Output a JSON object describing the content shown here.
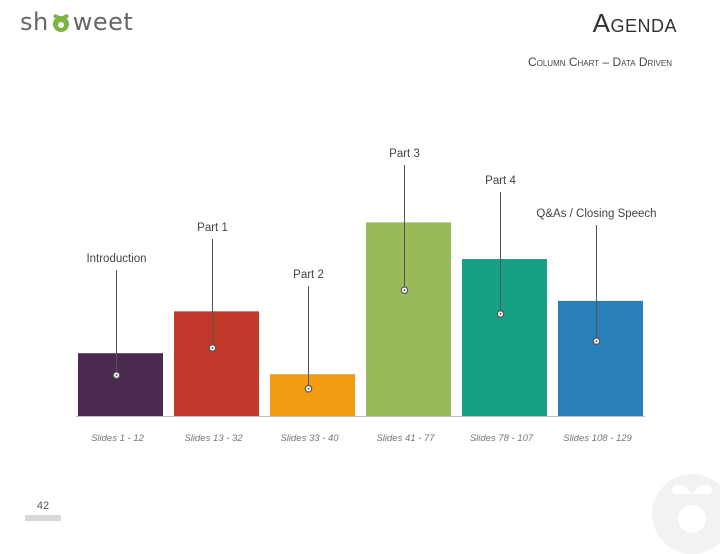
{
  "header": {
    "logo_text_left": "sh",
    "logo_text_right": "weet",
    "title": "Agenda",
    "subtitle": "Column Chart – Data Driven"
  },
  "footer": {
    "page_number": "42"
  },
  "colors": {
    "introduction": "#4a2a4e",
    "part1": "#c0392b",
    "part2": "#f39c12",
    "part3": "#9ab95a",
    "part4": "#16a085",
    "qa": "#2980b9",
    "logo_green": "#7cb342"
  },
  "chart_data": {
    "type": "bar",
    "categories": [
      "Slides 1 - 12",
      "Slides 13 - 32",
      "Slides 33 - 40",
      "Slides 41 - 77",
      "Slides 78 - 107",
      "Slides 108 - 129"
    ],
    "section_labels": [
      "Introduction",
      "Part 1",
      "Part 2",
      "Part 3",
      "Part 4",
      "Q&As / Closing Speech"
    ],
    "values": [
      12,
      20,
      8,
      37,
      30,
      22
    ],
    "ylim": [
      0,
      60
    ],
    "grid": false,
    "legend": "none"
  }
}
